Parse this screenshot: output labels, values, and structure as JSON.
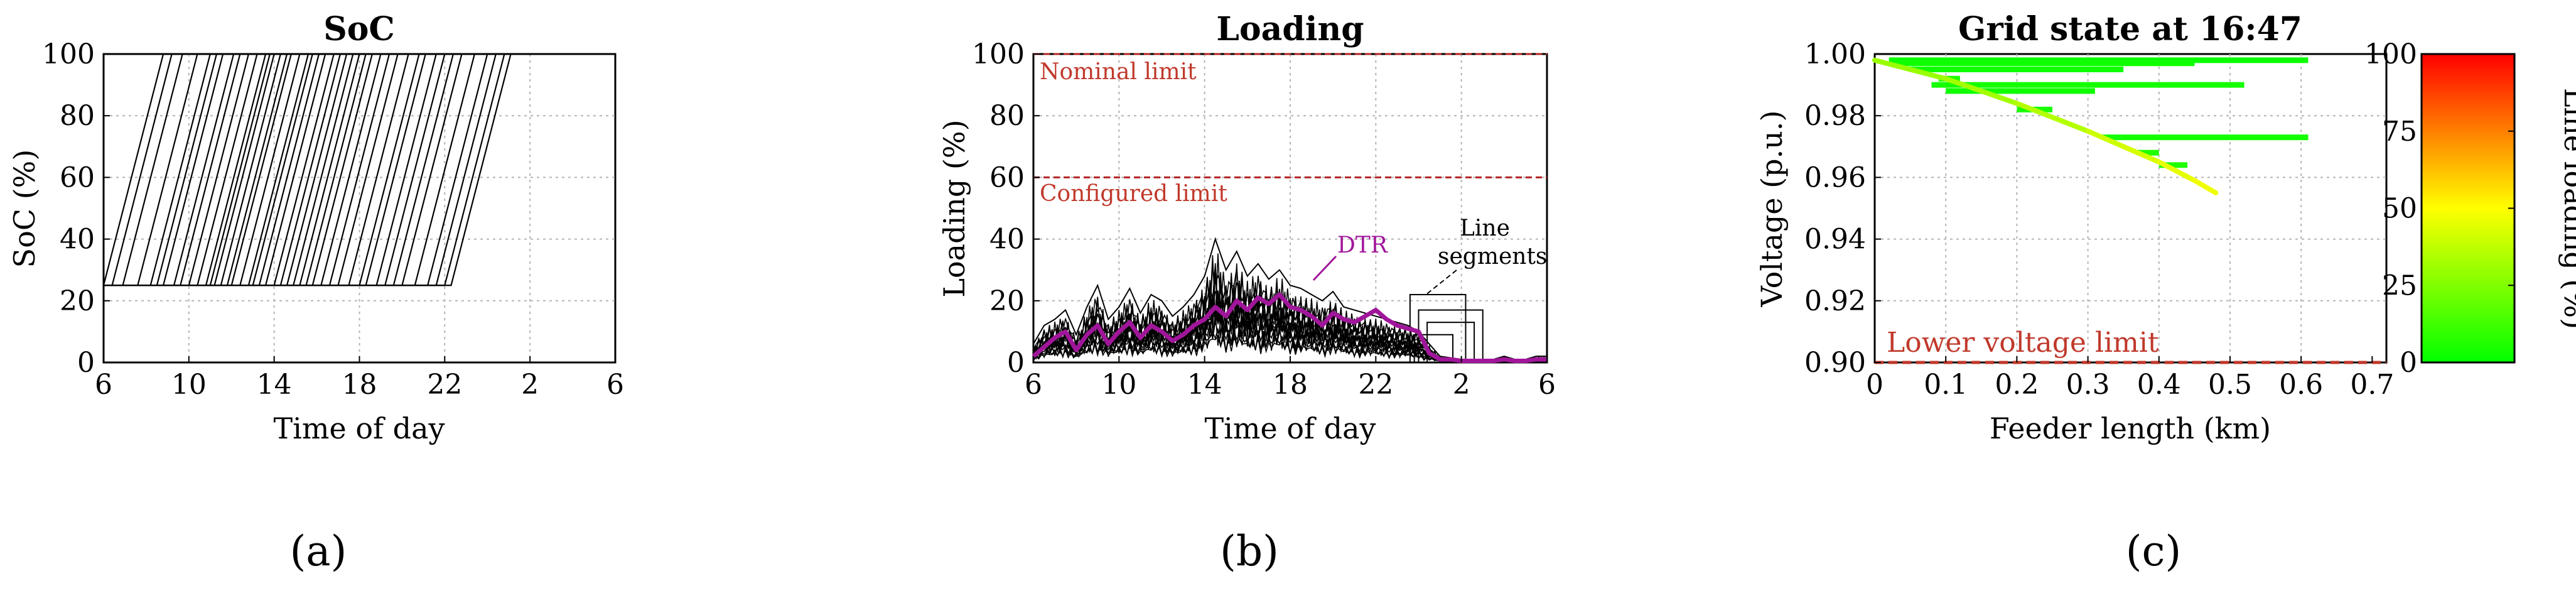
{
  "panels": [
    {
      "id": "a",
      "label": "(a)"
    },
    {
      "id": "b",
      "label": "(b)"
    },
    {
      "id": "c",
      "label": "(c)"
    }
  ],
  "chart_data": [
    {
      "id": "a",
      "type": "line",
      "title": "SoC",
      "xlabel": "Time of day",
      "ylabel": "SoC (%)",
      "x_tick_labels": [
        "6",
        "10",
        "14",
        "18",
        "22",
        "2",
        "6"
      ],
      "y_ticks": [
        0,
        20,
        40,
        60,
        80,
        100
      ],
      "ylim": [
        0,
        100
      ],
      "x_range_hours": [
        0,
        24
      ],
      "soc_min": 25,
      "soc_max": 100,
      "charge_start_hours": [
        0.0,
        0.4,
        0.9,
        1.6,
        2.2,
        2.5,
        2.8,
        3.3,
        3.6,
        4.0,
        4.4,
        4.8,
        5.0,
        5.2,
        5.5,
        5.8,
        6.0,
        6.4,
        6.8,
        7.0,
        7.3,
        7.6,
        8.0,
        8.3,
        8.6,
        8.9,
        9.2,
        9.5,
        9.8,
        10.2,
        10.6,
        11.0,
        11.5,
        12.0,
        12.3,
        12.8,
        13.2,
        13.6,
        14.0,
        14.6,
        15.2,
        15.6,
        16.0,
        16.3
      ],
      "charge_duration_hours": 2.8,
      "dashed_horizontal_at": 25
    },
    {
      "id": "b",
      "type": "line",
      "title": "Loading",
      "xlabel": "Time of day",
      "ylabel": "Loading (%)",
      "x_tick_labels": [
        "6",
        "10",
        "14",
        "18",
        "22",
        "2",
        "6"
      ],
      "y_ticks": [
        0,
        20,
        40,
        60,
        80,
        100
      ],
      "ylim": [
        0,
        100
      ],
      "x_range_hours": [
        0,
        24
      ],
      "limits": [
        {
          "name": "Nominal limit",
          "value": 100
        },
        {
          "name": "Configured limit",
          "value": 60
        }
      ],
      "annotations": {
        "dtr": "DTR",
        "segments_line1": "Line",
        "segments_line2": "segments"
      },
      "series": [
        {
          "name": "DTR",
          "color": "#a0169a",
          "x": [
            0,
            0.5,
            1.0,
            1.5,
            2.0,
            2.5,
            3.0,
            3.5,
            4.0,
            4.5,
            5.0,
            5.5,
            6.0,
            6.5,
            7.0,
            7.5,
            8.0,
            8.5,
            9.0,
            9.5,
            10.0,
            10.5,
            11.0,
            11.5,
            12.0,
            12.5,
            13.0,
            13.5,
            14.0,
            14.5,
            15.0,
            15.5,
            16.0,
            16.5,
            17.0,
            17.5,
            18.0,
            18.5,
            19.0,
            19.5,
            20.0,
            20.5,
            21.0,
            21.5,
            22.0,
            22.5,
            23.0,
            23.5,
            24.0
          ],
          "values": [
            2,
            5,
            8,
            10,
            4,
            9,
            12,
            6,
            10,
            13,
            8,
            12,
            10,
            7,
            9,
            12,
            14,
            18,
            15,
            20,
            17,
            21,
            19,
            22,
            18,
            17,
            15,
            12,
            16,
            14,
            13,
            15,
            17,
            14,
            12,
            11,
            10,
            3,
            1,
            1,
            0.5,
            0.5,
            0.5,
            0.5,
            1,
            0.5,
            0.5,
            1,
            1
          ]
        },
        {
          "name": "Line segments (envelope)",
          "color": "#000000",
          "x": [
            0,
            0.5,
            1.0,
            1.5,
            2.0,
            2.5,
            3.0,
            3.5,
            4.0,
            4.5,
            5.0,
            5.5,
            6.0,
            6.5,
            7.0,
            7.5,
            8.0,
            8.5,
            9.0,
            9.5,
            10.0,
            10.5,
            11.0,
            11.5,
            12.0,
            12.5,
            13.0,
            13.5,
            14.0,
            14.5,
            15.0,
            15.5,
            16.0,
            16.5,
            17.0,
            17.5,
            18.0,
            18.5,
            19.0,
            19.5,
            20.0,
            20.5,
            21.0,
            21.5,
            22.0,
            22.5,
            23.0,
            23.5,
            24.0
          ],
          "values": [
            6,
            12,
            14,
            17,
            9,
            18,
            25,
            14,
            18,
            24,
            16,
            22,
            20,
            15,
            18,
            22,
            28,
            40,
            30,
            36,
            28,
            32,
            27,
            30,
            25,
            24,
            22,
            20,
            23,
            18,
            17,
            16,
            15,
            14,
            13,
            12,
            10,
            6,
            2,
            1.5,
            1,
            1,
            1,
            1,
            2,
            1,
            1,
            2,
            2
          ]
        }
      ]
    },
    {
      "id": "c",
      "type": "line",
      "title": "Grid state at 16:47",
      "xlabel": "Feeder length (km)",
      "ylabel": "Voltage (p.u.)",
      "x_ticks": [
        0,
        0.1,
        0.2,
        0.3,
        0.4,
        0.5,
        0.6,
        0.7
      ],
      "x_tick_labels": [
        "0",
        "0.1",
        "0.2",
        "0.3",
        "0.4",
        "0.5",
        "0.6",
        "0.7"
      ],
      "y_ticks": [
        0.9,
        0.92,
        0.94,
        0.96,
        0.98,
        1.0
      ],
      "y_tick_labels": [
        "0.90",
        "0.92",
        "0.94",
        "0.96",
        "0.98",
        "1.00"
      ],
      "xlim": [
        0,
        0.72
      ],
      "ylim": [
        0.9,
        1.0
      ],
      "limit": {
        "name": "Lower voltage limit",
        "value": 0.9
      },
      "colorbar": {
        "label": "Line loading (%)",
        "ticks": [
          0,
          25,
          50,
          75,
          100
        ],
        "range": [
          0,
          100
        ]
      },
      "main_feeder": {
        "x": [
          0,
          0.1,
          0.2,
          0.3,
          0.35,
          0.4,
          0.45,
          0.48
        ],
        "y": [
          0.998,
          0.992,
          0.984,
          0.975,
          0.97,
          0.965,
          0.959,
          0.955
        ],
        "loading": [
          30,
          32,
          35,
          40,
          42,
          45,
          47,
          50
        ]
      },
      "branches": [
        {
          "x_start": 0.02,
          "x_end": 0.61,
          "y": 0.998,
          "loading": 2
        },
        {
          "x_start": 0.03,
          "x_end": 0.45,
          "y": 0.997,
          "loading": 3
        },
        {
          "x_start": 0.05,
          "x_end": 0.35,
          "y": 0.995,
          "loading": 3
        },
        {
          "x_start": 0.08,
          "x_end": 0.52,
          "y": 0.99,
          "loading": 4
        },
        {
          "x_start": 0.1,
          "x_end": 0.31,
          "y": 0.988,
          "loading": 3
        },
        {
          "x_start": 0.09,
          "x_end": 0.12,
          "y": 0.992,
          "loading": 5
        },
        {
          "x_start": 0.2,
          "x_end": 0.25,
          "y": 0.982,
          "loading": 5
        },
        {
          "x_start": 0.32,
          "x_end": 0.61,
          "y": 0.973,
          "loading": 4
        },
        {
          "x_start": 0.37,
          "x_end": 0.4,
          "y": 0.968,
          "loading": 6
        },
        {
          "x_start": 0.4,
          "x_end": 0.44,
          "y": 0.964,
          "loading": 6
        }
      ]
    }
  ]
}
